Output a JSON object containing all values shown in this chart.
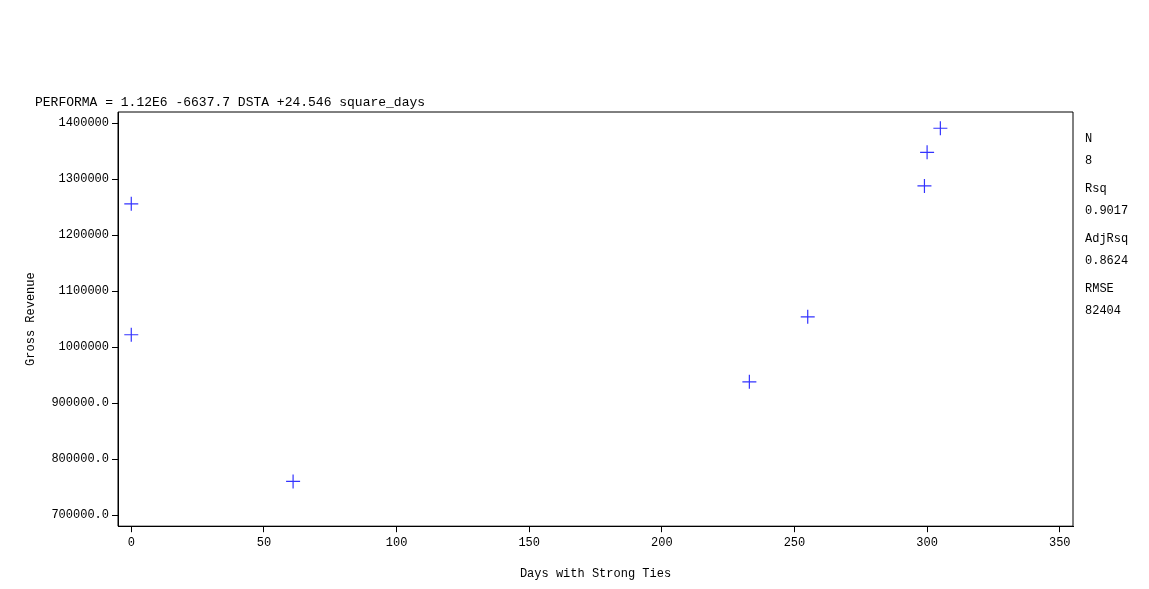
{
  "chart_data": {
    "type": "scatter",
    "title": "PERFORMA = 1.12E6 -6637.7 DSTA +24.546 square_days",
    "xlabel": "Days with Strong Ties",
    "ylabel": "Gross Revenue",
    "x": [
      0,
      0,
      61,
      233,
      255,
      299,
      300,
      305
    ],
    "series": [
      {
        "color": "#3333ff",
        "values": [
          1256000,
          1022000,
          760000,
          938000,
          1054000,
          1288000,
          1348000,
          1391000
        ]
      }
    ],
    "xlim": [
      -5,
      355
    ],
    "xticks": [
      0,
      50,
      100,
      150,
      200,
      250,
      300,
      350
    ],
    "ylim": [
      680000,
      1420000
    ],
    "yticks": [
      {
        "value": 700000,
        "label": "700000.0"
      },
      {
        "value": 800000,
        "label": "800000.0"
      },
      {
        "value": 900000,
        "label": "900000.0"
      },
      1000000,
      1100000,
      1200000,
      1300000,
      1400000
    ],
    "marker": "cross",
    "legend": false,
    "annotations": [
      "N",
      "8",
      "Rsq",
      "0.9017",
      "AdjRsq",
      "0.8624",
      "RMSE",
      "82404"
    ]
  }
}
